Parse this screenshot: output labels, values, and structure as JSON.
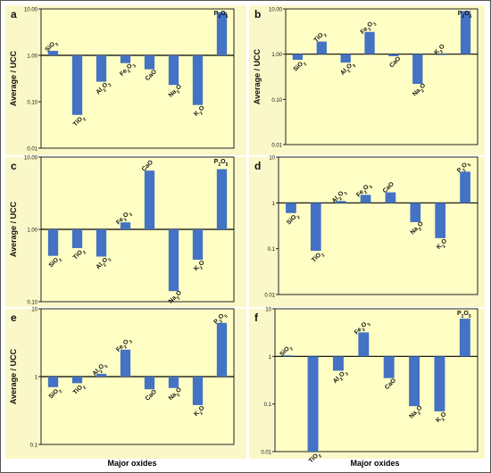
{
  "colors": {
    "panel_bg": "#FAF8C8",
    "plot_bg": "#FFFFC5",
    "bar": "#4472C4",
    "plot_border": "#222222",
    "text": "#111111"
  },
  "figure": {
    "xlabel": "Major oxides"
  },
  "chart_data": [
    {
      "panel": "a",
      "type": "bar",
      "yscale": "log",
      "ylim": [
        0.01,
        10
      ],
      "yticks": [
        "0.01",
        "0.10",
        "1.00",
        "10.00"
      ],
      "ylabel": "Average / UCC",
      "grid": false,
      "categories": [
        {
          "main": "SiO",
          "sub": "2",
          "after": ""
        },
        {
          "main": "TiO",
          "sub": "2",
          "after": ""
        },
        {
          "main": "Al",
          "sub": "2",
          "after": "O",
          "sub2": "3"
        },
        {
          "main": "Fe",
          "sub": "2",
          "after": "O",
          "sub2": "3"
        },
        {
          "main": "CaO",
          "sub": "",
          "after": ""
        },
        {
          "main": "Na",
          "sub": "2",
          "after": "O"
        },
        {
          "main": "K",
          "sub": "2",
          "after": "O"
        },
        {
          "main": "P",
          "sub": "2",
          "after": "O",
          "sub2": "5"
        }
      ],
      "values": [
        1.25,
        0.052,
        0.27,
        0.68,
        0.5,
        0.23,
        0.085,
        8.5
      ],
      "category_labels": [
        "SiO2",
        "TiO2",
        "Al2O3",
        "Fe2O3",
        "CaO",
        "Na2O",
        "K2O",
        "P2O5"
      ]
    },
    {
      "panel": "b",
      "type": "bar",
      "yscale": "log",
      "ylim": [
        0.01,
        10
      ],
      "yticks": [
        "0.01",
        "0.10",
        "1.00",
        "10.00"
      ],
      "ylabel": "Average / UCC",
      "grid": false,
      "categories": [
        {
          "main": "SiO",
          "sub": "2",
          "after": ""
        },
        {
          "main": "TiO",
          "sub": "2",
          "after": ""
        },
        {
          "main": "Al",
          "sub": "2",
          "after": "O",
          "sub2": "3"
        },
        {
          "main": "Fe",
          "sub": "2",
          "after": "O",
          "sub2": "3"
        },
        {
          "main": "CaO",
          "sub": "",
          "after": ""
        },
        {
          "main": "Na",
          "sub": "2",
          "after": "O"
        },
        {
          "main": "K",
          "sub": "2",
          "after": "O"
        },
        {
          "main": "P",
          "sub": "2",
          "after": "O",
          "sub2": "5"
        }
      ],
      "values": [
        0.75,
        1.9,
        0.65,
        3.1,
        0.9,
        0.22,
        1.0,
        9.0
      ],
      "category_labels": [
        "SiO2",
        "TiO2",
        "Al2O3",
        "Fe2O3",
        "CaO",
        "Na2O",
        "K2O",
        "P2O5"
      ]
    },
    {
      "panel": "c",
      "type": "bar",
      "yscale": "log",
      "ylim": [
        0.1,
        10
      ],
      "yticks": [
        "0.10",
        "1.00",
        "10.00"
      ],
      "ylabel": "Average / UCC",
      "grid": false,
      "categories": [
        {
          "main": "SiO",
          "sub": "2",
          "after": ""
        },
        {
          "main": "TiO",
          "sub": "2",
          "after": ""
        },
        {
          "main": "Al",
          "sub": "2",
          "after": "O",
          "sub2": "3"
        },
        {
          "main": "Fe",
          "sub": "2",
          "after": "O",
          "sub2": "3"
        },
        {
          "main": "CaO",
          "sub": "",
          "after": ""
        },
        {
          "main": "Na",
          "sub": "2",
          "after": "O"
        },
        {
          "main": "K",
          "sub": "2",
          "after": "O"
        },
        {
          "main": "P",
          "sub": "2",
          "after": "O",
          "sub2": "5"
        }
      ],
      "values": [
        0.43,
        0.55,
        0.42,
        1.25,
        6.5,
        0.14,
        0.38,
        6.8
      ],
      "category_labels": [
        "SiO2",
        "TiO2",
        "Al2O3",
        "Fe2O3",
        "CaO",
        "Na2O",
        "K2O",
        "P2O5"
      ]
    },
    {
      "panel": "d",
      "type": "bar",
      "yscale": "log",
      "ylim": [
        0.01,
        10
      ],
      "yticks": [
        "0.01",
        "0.1",
        "1",
        "10"
      ],
      "ylabel": "",
      "grid": false,
      "categories": [
        {
          "main": "SiO",
          "sub": "2",
          "after": ""
        },
        {
          "main": "TiO",
          "sub": "2",
          "after": ""
        },
        {
          "main": "Al",
          "sub": "2",
          "after": "O",
          "sub2": "3"
        },
        {
          "main": "Fe",
          "sub": "2",
          "after": "O",
          "sub2": "3"
        },
        {
          "main": "CaO",
          "sub": "",
          "after": ""
        },
        {
          "main": "Na",
          "sub": "2",
          "after": "O"
        },
        {
          "main": "K",
          "sub": "2",
          "after": "O"
        },
        {
          "main": "P",
          "sub": "2",
          "after": "O",
          "sub2": "5"
        }
      ],
      "values": [
        0.6,
        0.09,
        1.1,
        1.5,
        1.7,
        0.38,
        0.17,
        4.8
      ],
      "category_labels": [
        "SiO2",
        "TiO2",
        "Al2O3",
        "Fe2O3",
        "CaO",
        "Na2O",
        "K2O",
        "P2O5"
      ]
    },
    {
      "panel": "e",
      "type": "bar",
      "yscale": "log",
      "ylim": [
        0.1,
        10
      ],
      "yticks": [
        "0.1",
        "1",
        "10"
      ],
      "ylabel": "Average / UCC",
      "grid": false,
      "categories": [
        {
          "main": "SiO",
          "sub": "2",
          "after": ""
        },
        {
          "main": "TiO",
          "sub": "2",
          "after": ""
        },
        {
          "main": "Al",
          "sub": "2",
          "after": "O",
          "sub2": "3"
        },
        {
          "main": "Fe",
          "sub": "2",
          "after": "O",
          "sub2": "3"
        },
        {
          "main": "CaO",
          "sub": "",
          "after": ""
        },
        {
          "main": "Na",
          "sub": "2",
          "after": "O"
        },
        {
          "main": "K",
          "sub": "2",
          "after": "O"
        },
        {
          "main": "P",
          "sub": "2",
          "after": "O",
          "sub2": "5"
        }
      ],
      "values": [
        0.7,
        0.8,
        1.1,
        2.5,
        0.65,
        0.68,
        0.38,
        6.2
      ],
      "category_labels": [
        "SiO2",
        "TiO2",
        "Al2O3",
        "Fe2O3",
        "CaO",
        "Na2O",
        "K2O",
        "P2O5"
      ]
    },
    {
      "panel": "f",
      "type": "bar",
      "yscale": "log",
      "ylim": [
        0.01,
        10
      ],
      "yticks": [
        "0.01",
        "0.1",
        "1",
        "10"
      ],
      "ylabel": "",
      "grid": false,
      "categories": [
        {
          "main": "SiO",
          "sub": "2",
          "after": ""
        },
        {
          "main": "TiO",
          "sub": "2",
          "after": ""
        },
        {
          "main": "Al",
          "sub": "2",
          "after": "O",
          "sub2": "3"
        },
        {
          "main": "Fe",
          "sub": "2",
          "after": "O",
          "sub2": "3"
        },
        {
          "main": "CaO",
          "sub": "",
          "after": ""
        },
        {
          "main": "Na",
          "sub": "2",
          "after": "O"
        },
        {
          "main": "K",
          "sub": "2",
          "after": "O"
        },
        {
          "main": "P",
          "sub": "2",
          "after": "O",
          "sub2": "5"
        }
      ],
      "values": [
        1.05,
        0.01,
        0.5,
        3.2,
        0.35,
        0.09,
        0.07,
        6.2
      ],
      "category_labels": [
        "SiO2",
        "TiO2",
        "Al2O3",
        "Fe2O3",
        "CaO",
        "Na2O",
        "K2O",
        "P2O5"
      ]
    }
  ]
}
